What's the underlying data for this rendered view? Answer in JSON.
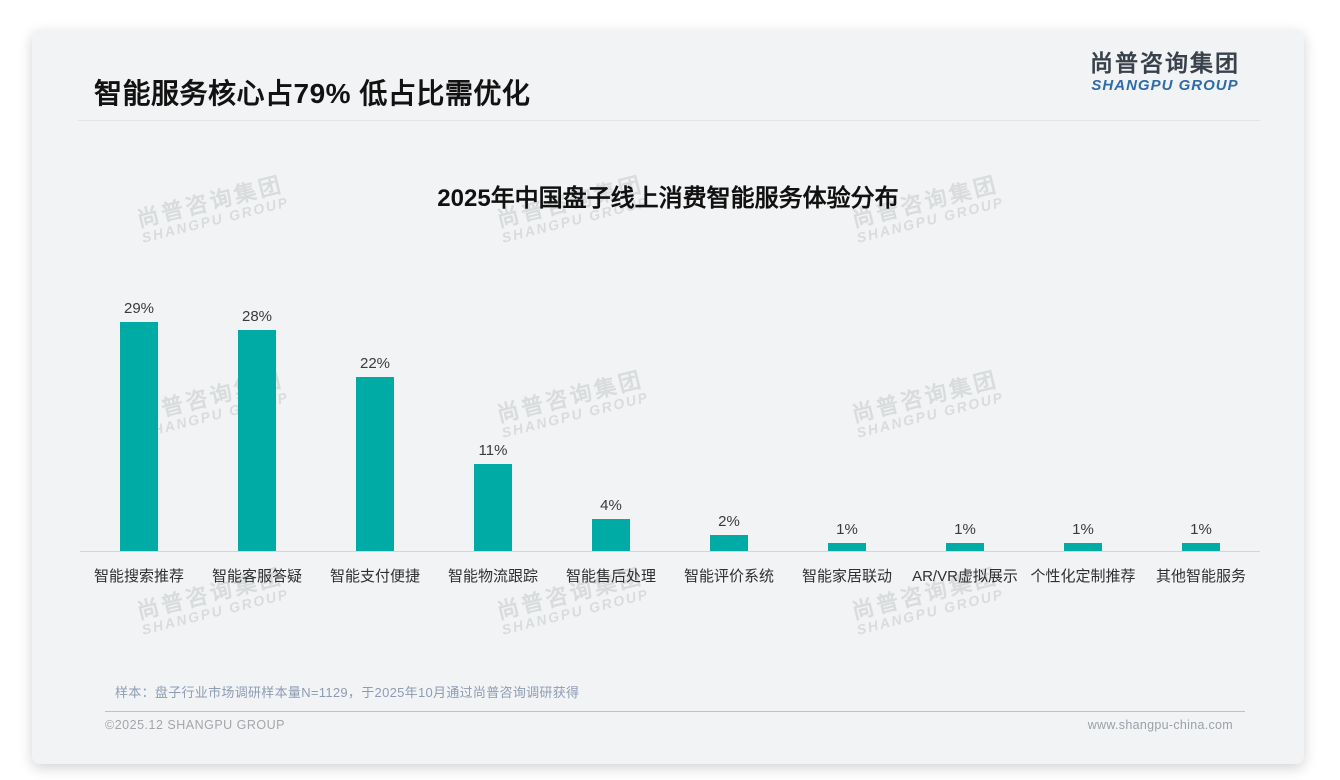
{
  "header": {
    "title": "智能服务核心占79% 低占比需优化"
  },
  "logo": {
    "cn": "尚普咨询集团",
    "en": "SHANGPU GROUP"
  },
  "watermark": {
    "cn": "尚普咨询集团",
    "en": "SHANGPU GROUP"
  },
  "chart_data": {
    "type": "bar",
    "title": "2025年中国盘子线上消费智能服务体验分布",
    "categories": [
      "智能搜索推荐",
      "智能客服答疑",
      "智能支付便捷",
      "智能物流跟踪",
      "智能售后处理",
      "智能评价系统",
      "智能家居联动",
      "AR/VR虚拟展示",
      "个性化定制推荐",
      "其他智能服务"
    ],
    "values": [
      29,
      28,
      22,
      11,
      4,
      2,
      1,
      1,
      1,
      1
    ],
    "value_labels": [
      "29%",
      "28%",
      "22%",
      "11%",
      "4%",
      "2%",
      "1%",
      "1%",
      "1%",
      "1%"
    ],
    "bar_color": "#00aba5",
    "xlabel": "",
    "ylabel": "",
    "ylim": [
      0,
      32
    ],
    "grid": false,
    "legend": "none",
    "value_unit": "%"
  },
  "footer": {
    "note": "样本：盘子行业市场调研样本量N=1129，于2025年10月通过尚普咨询调研获得",
    "copyright": "©2025.12 SHANGPU GROUP",
    "website": "www.shangpu-china.com"
  }
}
